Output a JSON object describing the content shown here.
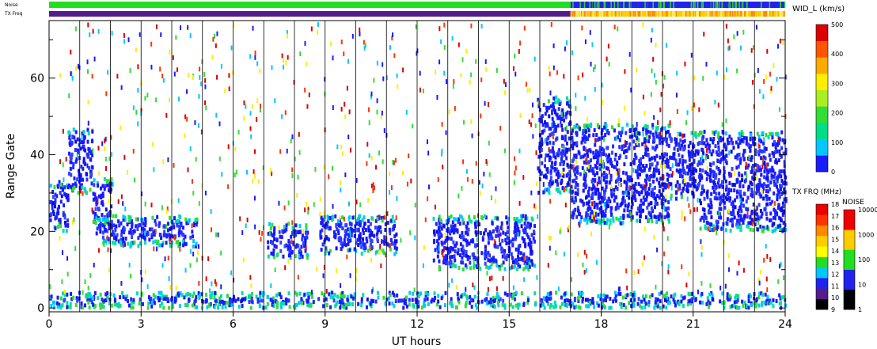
{
  "chart_data": {
    "type": "heatmap",
    "title": "",
    "xlabel": "UT hours",
    "ylabel": "Range Gate",
    "xlim": [
      0,
      24
    ],
    "ylim": [
      -1,
      75
    ],
    "x_ticks": [
      0,
      3,
      6,
      9,
      12,
      15,
      18,
      21,
      24
    ],
    "y_ticks": [
      0,
      20,
      40,
      60
    ],
    "vertical_lines_hours": [
      1,
      2,
      3,
      4,
      5,
      6,
      7,
      8,
      9,
      10,
      11,
      12,
      13,
      14,
      15,
      16,
      17,
      18,
      19,
      20,
      21,
      22,
      23,
      24
    ],
    "top_strips": [
      {
        "label": "Noise",
        "segments": [
          {
            "from": 0,
            "to": 17,
            "color": "#22dd22"
          },
          {
            "from": 17,
            "to": 20,
            "color": "#2222ee"
          },
          {
            "from": 20,
            "to": 24,
            "color": "#2222ee"
          }
        ]
      },
      {
        "label": "TX Freq",
        "segments": [
          {
            "from": 0,
            "to": 17,
            "color": "#551a8b"
          },
          {
            "from": 17,
            "to": 24,
            "color": "#ffcc00"
          }
        ]
      }
    ],
    "colorbar_width": {
      "label": "WID_L (km/s)",
      "ticks": [
        "0",
        "100",
        "200",
        "300",
        "400",
        "500"
      ],
      "colors": [
        "#1a1aff",
        "#00c8ff",
        "#00dd88",
        "#33dd33",
        "#aaee22",
        "#ffee00",
        "#ffaa00",
        "#ff5500",
        "#dd0000"
      ]
    },
    "colorbar_txfreq": {
      "label": "TX FRQ (MHz)",
      "ticks": [
        "9",
        "10",
        "11",
        "12",
        "13",
        "14",
        "15",
        "16",
        "17",
        "18"
      ],
      "colors": [
        "#000000",
        "#551a8b",
        "#2222ee",
        "#00c8ff",
        "#22dd22",
        "#ffff00",
        "#ffcc00",
        "#ff8800",
        "#ff3300",
        "#ee0000"
      ]
    },
    "colorbar_noise": {
      "label": "NOISE",
      "ticks": [
        "1",
        "10",
        "100",
        "1000",
        "10000"
      ],
      "colors": [
        "#000000",
        "#2222ee",
        "#22dd22",
        "#ffcc00",
        "#ee0000"
      ]
    },
    "echo_bands": [
      {
        "from": 0.0,
        "to": 0.6,
        "gate_low": 20,
        "gate_high": 33
      },
      {
        "from": 0.6,
        "to": 1.4,
        "gate_low": 30,
        "gate_high": 47
      },
      {
        "from": 1.4,
        "to": 2.0,
        "gate_low": 22,
        "gate_high": 34
      },
      {
        "from": 1.5,
        "to": 4.8,
        "gate_low": 16,
        "gate_high": 24
      },
      {
        "from": 7.1,
        "to": 8.4,
        "gate_low": 13,
        "gate_high": 22
      },
      {
        "from": 8.8,
        "to": 11.3,
        "gate_low": 14,
        "gate_high": 24
      },
      {
        "from": 12.5,
        "to": 15.8,
        "gate_low": 10,
        "gate_high": 24
      },
      {
        "from": 15.9,
        "to": 17.0,
        "gate_low": 30,
        "gate_high": 55
      },
      {
        "from": 17.0,
        "to": 20.2,
        "gate_low": 22,
        "gate_high": 48
      },
      {
        "from": 20.2,
        "to": 21.2,
        "gate_low": 28,
        "gate_high": 46
      },
      {
        "from": 21.2,
        "to": 24.0,
        "gate_low": 20,
        "gate_high": 46
      },
      {
        "from": 0.0,
        "to": 24.0,
        "gate_low": 0,
        "gate_high": 4
      }
    ]
  }
}
